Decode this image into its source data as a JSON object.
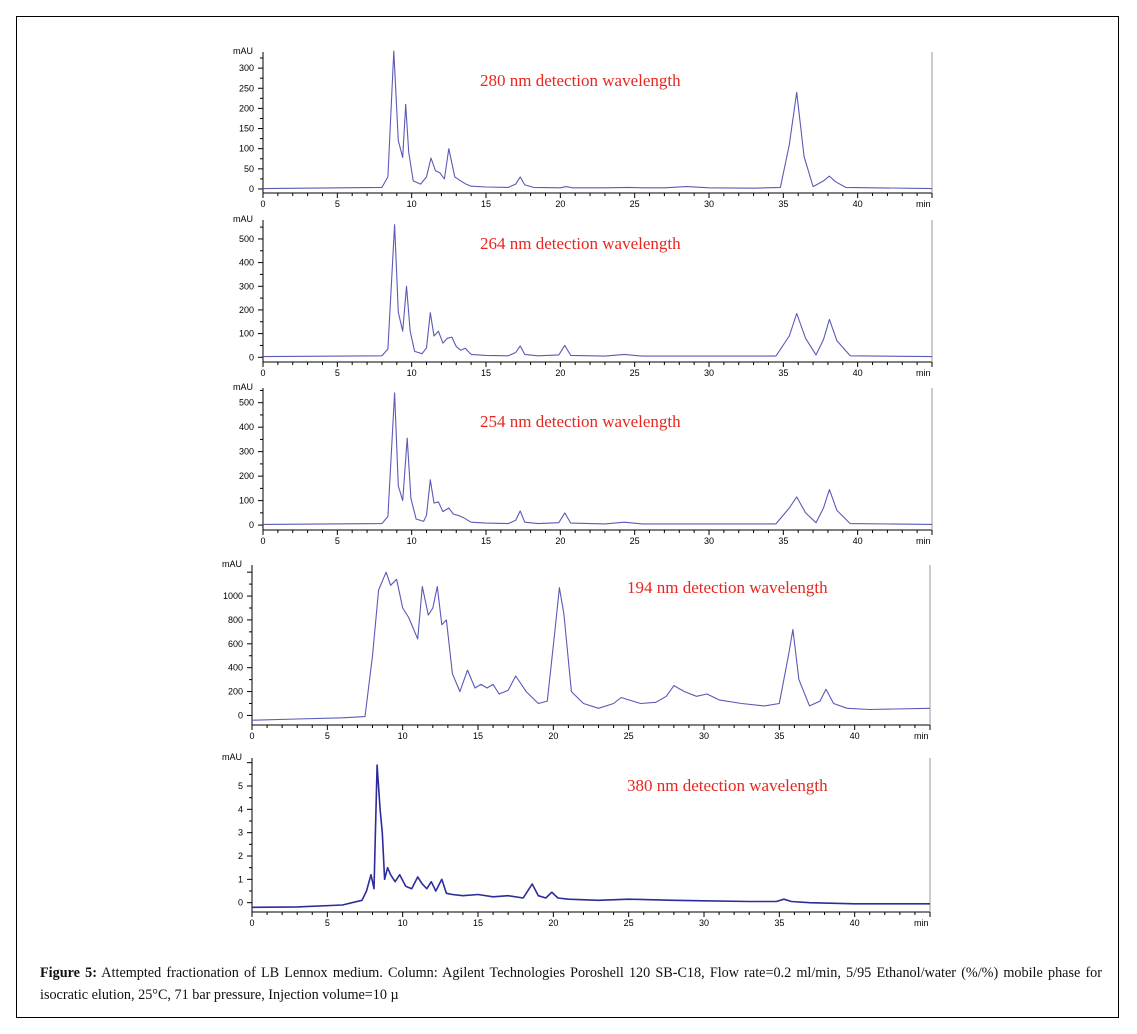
{
  "caption": {
    "label": "Figure 5:",
    "text": " Attempted fractionation of LB Lennox medium. Column: Agilent Technologies Poroshell 120 SB-C18, Flow rate=0.2 ml/min, 5/95 Ethanol/water (%/%) mobile phase for isocratic elution, 25°C, 71 bar pressure, Injection volume=10 µ"
  },
  "chart_data": [
    {
      "type": "line",
      "title": "280 nm detection wavelength",
      "ylabel": "mAU",
      "xlabel": "min",
      "xlim": [
        0,
        45
      ],
      "ylim": [
        -10,
        340
      ],
      "xticks": [
        0,
        5,
        10,
        15,
        20,
        25,
        30,
        35,
        40
      ],
      "yticks": [
        0,
        50,
        100,
        150,
        200,
        250,
        300
      ],
      "color": "#5a5ab8",
      "baseline": 1,
      "x": [
        0,
        8,
        8.4,
        8.8,
        9.1,
        9.4,
        9.6,
        9.8,
        10.1,
        10.6,
        11.0,
        11.3,
        11.6,
        11.9,
        12.2,
        12.5,
        12.9,
        13.3,
        13.6,
        14.0,
        15.0,
        16.5,
        17.0,
        17.3,
        17.6,
        18.2,
        20.0,
        20.4,
        20.8,
        23,
        24.6,
        25.5,
        27.0,
        28.5,
        30.0,
        33,
        34.8,
        35.4,
        35.9,
        36.4,
        37.0,
        37.7,
        38.1,
        38.5,
        39.2,
        45
      ],
      "values": [
        1,
        4,
        30,
        342,
        120,
        78,
        210,
        92,
        20,
        12,
        30,
        77,
        45,
        40,
        25,
        100,
        30,
        20,
        13,
        7,
        5,
        4,
        12,
        30,
        10,
        4,
        3,
        6,
        3,
        3,
        4,
        3,
        3,
        6,
        3,
        2,
        4,
        110,
        240,
        80,
        6,
        20,
        32,
        18,
        4,
        1
      ]
    },
    {
      "type": "line",
      "title": "264 nm detection wavelength",
      "ylabel": "mAU",
      "xlabel": "min",
      "xlim": [
        0,
        45
      ],
      "ylim": [
        -20,
        580
      ],
      "xticks": [
        0,
        5,
        10,
        15,
        20,
        25,
        30,
        35,
        40
      ],
      "yticks": [
        0,
        100,
        200,
        300,
        400,
        500
      ],
      "color": "#5a5ab8",
      "baseline": 3,
      "x": [
        0,
        8,
        8.4,
        8.85,
        9.1,
        9.4,
        9.65,
        9.9,
        10.2,
        10.7,
        11.0,
        11.25,
        11.5,
        11.8,
        12.1,
        12.4,
        12.7,
        13.0,
        13.3,
        13.6,
        14.0,
        15.0,
        16.5,
        17.0,
        17.3,
        17.6,
        18.5,
        19.9,
        20.3,
        20.7,
        23,
        24.3,
        25.5,
        34.5,
        35.4,
        35.9,
        36.5,
        37.2,
        37.7,
        38.1,
        38.6,
        39.5,
        45
      ],
      "values": [
        3,
        6,
        35,
        560,
        190,
        110,
        300,
        110,
        25,
        15,
        40,
        188,
        90,
        110,
        60,
        80,
        85,
        45,
        30,
        38,
        12,
        8,
        6,
        20,
        48,
        12,
        6,
        10,
        50,
        8,
        5,
        12,
        5,
        5,
        90,
        185,
        80,
        10,
        75,
        160,
        70,
        6,
        3
      ]
    },
    {
      "type": "line",
      "title": "254 nm detection wavelength",
      "ylabel": "mAU",
      "xlabel": "min",
      "xlim": [
        0,
        45
      ],
      "ylim": [
        -20,
        560
      ],
      "xticks": [
        0,
        5,
        10,
        15,
        20,
        25,
        30,
        35,
        40
      ],
      "yticks": [
        0,
        100,
        200,
        300,
        400,
        500
      ],
      "color": "#5a5ab8",
      "baseline": 3,
      "x": [
        0,
        8,
        8.4,
        8.85,
        9.1,
        9.4,
        9.7,
        9.95,
        10.3,
        10.8,
        11.0,
        11.25,
        11.5,
        11.8,
        12.1,
        12.5,
        12.8,
        13.1,
        13.5,
        14.0,
        15.0,
        16.5,
        17.0,
        17.3,
        17.6,
        18.5,
        19.9,
        20.3,
        20.7,
        23,
        24.3,
        25.5,
        34.5,
        35.4,
        35.9,
        36.5,
        37.2,
        37.7,
        38.1,
        38.6,
        39.5,
        45
      ],
      "values": [
        3,
        6,
        35,
        540,
        160,
        100,
        355,
        110,
        25,
        15,
        40,
        185,
        90,
        95,
        55,
        70,
        45,
        40,
        30,
        12,
        8,
        6,
        20,
        58,
        12,
        6,
        10,
        50,
        8,
        5,
        12,
        5,
        5,
        70,
        115,
        50,
        10,
        70,
        145,
        60,
        6,
        3
      ]
    },
    {
      "type": "line",
      "title": "194 nm detection wavelength",
      "ylabel": "mAU",
      "xlabel": "min",
      "xlim": [
        0,
        45
      ],
      "ylim": [
        -80,
        1260
      ],
      "xticks": [
        0,
        5,
        10,
        15,
        20,
        25,
        30,
        35,
        40
      ],
      "yticks": [
        0,
        200,
        400,
        600,
        800,
        1000
      ],
      "color": "#5a5ab8",
      "x": [
        0,
        3,
        6,
        7.5,
        8.0,
        8.4,
        8.9,
        9.2,
        9.6,
        10.0,
        10.4,
        11.0,
        11.3,
        11.7,
        12.0,
        12.3,
        12.6,
        12.9,
        13.3,
        13.8,
        14.3,
        14.8,
        15.2,
        15.6,
        16.0,
        16.4,
        17.0,
        17.5,
        18.2,
        19.0,
        19.6,
        20.1,
        20.4,
        20.7,
        21.2,
        22.0,
        23.0,
        24.0,
        24.5,
        25.0,
        25.8,
        26.8,
        27.5,
        28.0,
        28.7,
        29.5,
        30.2,
        31.0,
        32.5,
        34.0,
        35.0,
        35.6,
        35.9,
        36.3,
        37.0,
        37.7,
        38.1,
        38.6,
        39.5,
        41,
        45
      ],
      "values": [
        -40,
        -30,
        -20,
        -10,
        500,
        1050,
        1200,
        1090,
        1140,
        900,
        820,
        640,
        1080,
        840,
        900,
        1080,
        760,
        800,
        350,
        200,
        380,
        230,
        260,
        230,
        260,
        180,
        210,
        330,
        200,
        100,
        120,
        700,
        1070,
        850,
        200,
        100,
        60,
        100,
        150,
        130,
        100,
        110,
        160,
        250,
        200,
        160,
        180,
        130,
        100,
        80,
        100,
        500,
        720,
        300,
        80,
        120,
        220,
        100,
        60,
        50,
        60
      ]
    },
    {
      "type": "line",
      "title": "380 nm detection wavelength",
      "ylabel": "mAU",
      "xlabel": "min",
      "xlim": [
        0,
        45
      ],
      "ylim": [
        -0.4,
        6.2
      ],
      "xticks": [
        0,
        5,
        10,
        15,
        20,
        25,
        30,
        35,
        40
      ],
      "yticks": [
        0,
        1,
        2,
        3,
        4,
        5
      ],
      "color": "#2c2c9a",
      "x": [
        0,
        3,
        6,
        7.3,
        7.6,
        7.9,
        8.1,
        8.3,
        8.5,
        8.65,
        8.8,
        9.0,
        9.2,
        9.5,
        9.8,
        10.2,
        10.6,
        11.0,
        11.3,
        11.6,
        11.9,
        12.2,
        12.6,
        12.9,
        13.3,
        14.0,
        15.0,
        16.0,
        17.0,
        18.0,
        18.6,
        19.0,
        19.5,
        19.9,
        20.3,
        21,
        23,
        25,
        28,
        30,
        33,
        34.8,
        35.3,
        35.8,
        37,
        40,
        45
      ],
      "values": [
        -0.2,
        -0.18,
        -0.1,
        0.1,
        0.5,
        1.2,
        0.6,
        5.9,
        4.0,
        3.0,
        1.0,
        1.5,
        1.2,
        0.9,
        1.2,
        0.7,
        0.6,
        1.1,
        0.8,
        0.6,
        0.9,
        0.5,
        1.0,
        0.4,
        0.35,
        0.3,
        0.35,
        0.25,
        0.3,
        0.2,
        0.8,
        0.3,
        0.2,
        0.45,
        0.2,
        0.15,
        0.1,
        0.15,
        0.1,
        0.08,
        0.05,
        0.05,
        0.15,
        0.05,
        0.0,
        -0.05,
        -0.05
      ]
    }
  ]
}
